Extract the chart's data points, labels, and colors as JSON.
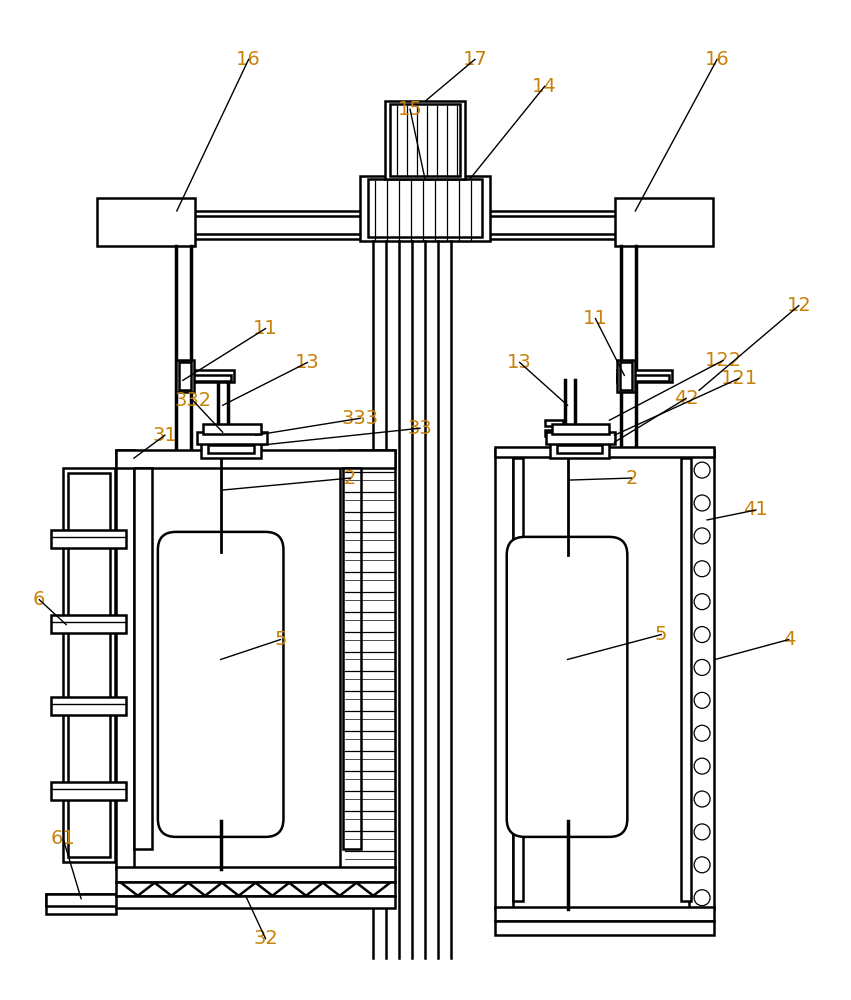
{
  "bg_color": "#ffffff",
  "label_color": "#c8820a",
  "figsize": [
    8.51,
    10.0
  ],
  "dpi": 100
}
